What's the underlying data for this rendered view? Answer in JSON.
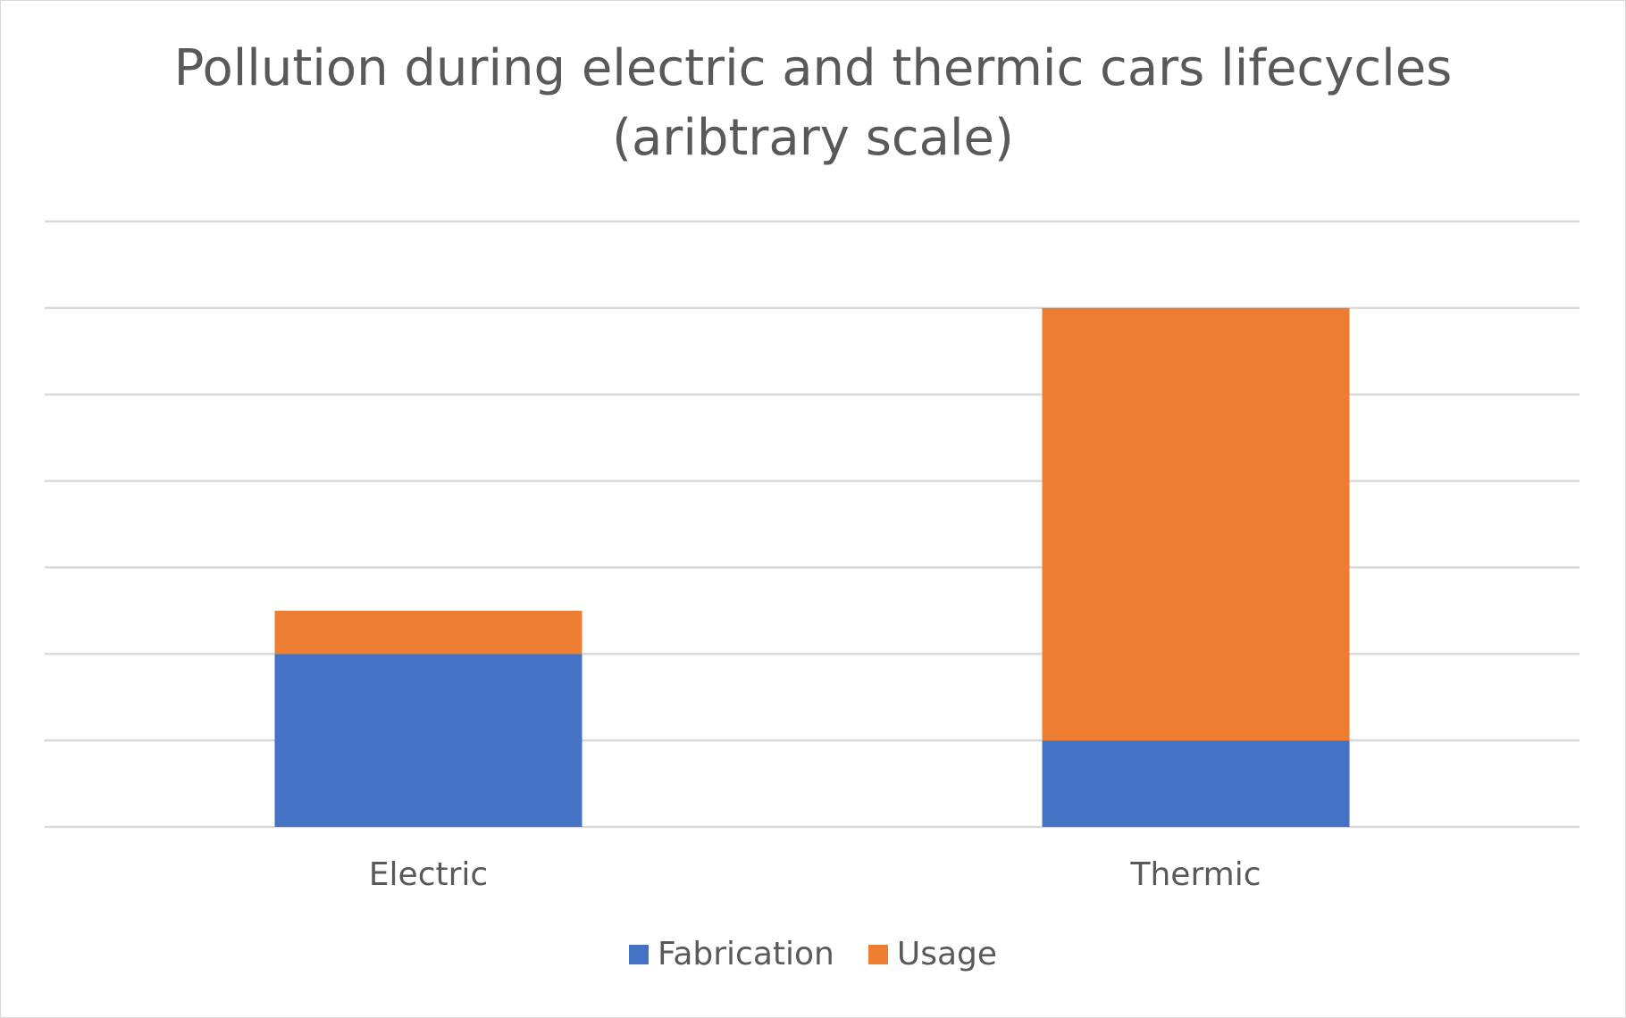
{
  "chart_data": {
    "type": "bar",
    "stacked": true,
    "title": "Pollution during electric and thermic cars lifecycles",
    "subtitle": "(aribtrary scale)",
    "xlabel": "",
    "ylabel": "",
    "categories": [
      "Electric",
      "Thermic"
    ],
    "series": [
      {
        "name": "Fabrication",
        "color": "#4472c4",
        "values": [
          2,
          1
        ]
      },
      {
        "name": "Usage",
        "color": "#ed7d31",
        "values": [
          0.5,
          5
        ]
      }
    ],
    "ylim": [
      0,
      7
    ],
    "y_gridlines": [
      0,
      1,
      2,
      3,
      4,
      5,
      6,
      7
    ],
    "y_tick_labels_shown": false,
    "grid": true,
    "legend_position": "bottom",
    "gridline_color": "#d9d9d9",
    "text_color": "#595959"
  }
}
